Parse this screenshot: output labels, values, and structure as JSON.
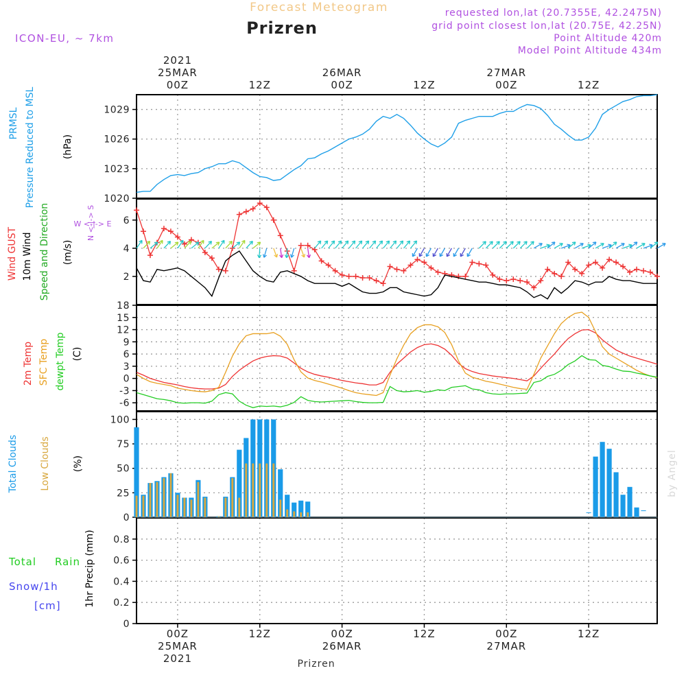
{
  "header": {
    "product": "Forecast Meteogram",
    "title": "Prizren",
    "model": "ICON-EU, ~ 7km",
    "requested": "requested lon,lat (20.7355E, 42.2475N)",
    "gridpoint": "grid point closest lon,lat (20.75E, 42.25N)",
    "point_alt": "Point Altitude 420m",
    "model_alt": "Model Point Altitude 434m",
    "footer": "Prizren",
    "credit": "by Angel"
  },
  "time_axis": {
    "top_labels": [
      {
        "time": "00Z",
        "date": "25MAR",
        "year": "2021"
      },
      {
        "time": "12Z",
        "date": "",
        "year": ""
      },
      {
        "time": "00Z",
        "date": "26MAR",
        "year": ""
      },
      {
        "time": "12Z",
        "date": "",
        "year": ""
      },
      {
        "time": "00Z",
        "date": "27MAR",
        "year": ""
      },
      {
        "time": "12Z",
        "date": "",
        "year": ""
      }
    ],
    "bottom_labels": [
      {
        "time": "00Z",
        "date": "25MAR",
        "year": "2021"
      },
      {
        "time": "12Z",
        "date": "",
        "year": ""
      },
      {
        "time": "00Z",
        "date": "26MAR",
        "year": ""
      },
      {
        "time": "12Z",
        "date": "",
        "year": ""
      },
      {
        "time": "00Z",
        "date": "27MAR",
        "year": ""
      },
      {
        "time": "12Z",
        "date": "",
        "year": ""
      }
    ]
  },
  "panel_labels": {
    "pressure": {
      "l1": "PRMSL",
      "l2": "Pressure Reduced to MSL",
      "unit": "(hPa)"
    },
    "wind": {
      "l1": "Wind GUST",
      "l2": "10m Wind",
      "l3": "Speed and Direction",
      "unit": "(m/s)",
      "compass": "W <-|-> E",
      "compass_ns": "N <-|-> S"
    },
    "temp": {
      "l1": "2m Temp",
      "l2": "SFC Temp",
      "l3": "dewpt Temp",
      "unit": "(C)"
    },
    "clouds": {
      "l1": "Total Clouds",
      "l2": "Low Clouds",
      "unit": "(%)"
    },
    "precip": {
      "l1": "Total",
      "l1b": "Rain",
      "l2": "Snow/1h",
      "l3": "[cm]",
      "unit": "1hr Precip (mm)"
    }
  },
  "colors": {
    "pressure": "#1e9fe8",
    "gust": "#ee3333",
    "wind": "#000000",
    "t2m": "#ee3333",
    "sfc": "#e8a020",
    "dew": "#22cc22",
    "total_cloud": "#1a9be8",
    "low_cloud": "#d8a840",
    "grid": "#9a9a9a",
    "header_product": "#f2c888",
    "meta": "#b050e0"
  },
  "chart_data": [
    {
      "type": "line",
      "name": "pressure",
      "ylabel": "(hPa)",
      "ylim": [
        1020,
        1030.5
      ],
      "yticks": [
        1020,
        1023,
        1026,
        1029
      ],
      "x_hours": [
        -6,
        -5,
        -4,
        -3,
        -2,
        -1,
        0,
        1,
        2,
        3,
        4,
        5,
        6,
        7,
        8,
        9,
        10,
        11,
        12,
        13,
        14,
        15,
        16,
        17,
        18,
        19,
        20,
        21,
        22,
        23,
        24,
        25,
        26,
        27,
        28,
        29,
        30,
        31,
        32,
        33,
        34,
        35,
        36,
        37,
        38,
        39,
        40,
        41,
        42,
        43,
        44,
        45,
        46,
        47,
        48,
        49,
        50,
        51,
        52,
        53,
        54,
        55,
        56,
        57,
        58,
        59,
        60,
        61,
        62,
        63,
        64,
        65,
        66,
        67,
        68,
        69,
        70
      ],
      "series": [
        {
          "values": [
            1020.6,
            1020.7,
            1020.7,
            1021.4,
            1021.9,
            1022.3,
            1022.4,
            1022.3,
            1022.5,
            1022.6,
            1023.0,
            1023.2,
            1023.5,
            1023.5,
            1023.8,
            1023.6,
            1023.1,
            1022.6,
            1022.2,
            1022.1,
            1021.8,
            1021.9,
            1022.4,
            1022.9,
            1023.3,
            1024.0,
            1024.1,
            1024.5,
            1024.8,
            1025.2,
            1025.6,
            1026.0,
            1026.2,
            1026.5,
            1027.0,
            1027.8,
            1028.3,
            1028.1,
            1028.5,
            1028.1,
            1027.4,
            1026.6,
            1026.0,
            1025.5,
            1025.2,
            1025.6,
            1026.2,
            1027.6,
            1027.9,
            1028.1,
            1028.3,
            1028.3,
            1028.3,
            1028.6,
            1028.8,
            1028.8,
            1029.2,
            1029.5,
            1029.4,
            1029.1,
            1028.4,
            1027.5,
            1027.0,
            1026.4,
            1025.9,
            1025.9,
            1026.2,
            1027.1,
            1028.5,
            1029.0,
            1029.4,
            1029.8,
            1030.0,
            1030.3,
            1030.4,
            1030.4,
            1030.5
          ]
        }
      ]
    },
    {
      "type": "line",
      "name": "wind",
      "ylabel": "(m/s)",
      "ylim": [
        0,
        7.5
      ],
      "yticks": [
        2,
        4,
        6
      ],
      "x_hours": [
        -6,
        -5,
        -4,
        -3,
        -2,
        -1,
        0,
        1,
        2,
        3,
        4,
        5,
        6,
        7,
        8,
        9,
        10,
        11,
        12,
        13,
        14,
        15,
        16,
        17,
        18,
        19,
        20,
        21,
        22,
        23,
        24,
        25,
        26,
        27,
        28,
        29,
        30,
        31,
        32,
        33,
        34,
        35,
        36,
        37,
        38,
        39,
        40,
        41,
        42,
        43,
        44,
        45,
        46,
        47,
        48,
        49,
        50,
        51,
        52,
        53,
        54,
        55,
        56,
        57,
        58,
        59,
        60,
        61,
        62,
        63,
        64,
        65,
        66,
        67,
        68,
        69,
        70
      ],
      "series": [
        {
          "name": "Wind GUST",
          "values": [
            6.7,
            5.2,
            3.5,
            4.4,
            5.4,
            5.2,
            4.8,
            4.3,
            4.6,
            4.4,
            3.7,
            3.3,
            2.5,
            2.4,
            4.0,
            6.4,
            6.6,
            6.8,
            7.2,
            6.9,
            6.0,
            4.9,
            3.8,
            2.4,
            4.2,
            4.2,
            3.9,
            3.1,
            2.8,
            2.4,
            2.1,
            2.0,
            2.0,
            1.9,
            1.9,
            1.7,
            1.5,
            2.7,
            2.5,
            2.4,
            2.8,
            3.2,
            3.0,
            2.6,
            2.3,
            2.2,
            2.1,
            2.0,
            2.0,
            3.0,
            2.9,
            2.8,
            2.1,
            1.8,
            1.7,
            1.8,
            1.7,
            1.6,
            1.2,
            1.7,
            2.5,
            2.2,
            2.0,
            3.0,
            2.5,
            2.2,
            2.8,
            3.0,
            2.6,
            3.2,
            3.0,
            2.7,
            2.3,
            2.5,
            2.4,
            2.3,
            2.0
          ]
        },
        {
          "name": "10m Wind",
          "values": [
            2.6,
            1.7,
            1.6,
            2.5,
            2.4,
            2.5,
            2.6,
            2.4,
            2.0,
            1.6,
            1.2,
            0.6,
            1.9,
            3.1,
            3.5,
            3.8,
            3.1,
            2.4,
            2.0,
            1.7,
            1.6,
            2.3,
            2.4,
            2.2,
            2.0,
            1.7,
            1.5,
            1.5,
            1.5,
            1.5,
            1.3,
            1.5,
            1.2,
            0.9,
            0.8,
            0.8,
            0.9,
            1.2,
            1.2,
            0.9,
            0.8,
            0.7,
            0.6,
            0.7,
            1.2,
            2.1,
            2.0,
            1.9,
            1.8,
            1.7,
            1.6,
            1.6,
            1.5,
            1.4,
            1.4,
            1.3,
            1.2,
            0.9,
            0.5,
            0.7,
            0.4,
            1.2,
            0.8,
            1.2,
            1.7,
            1.6,
            1.4,
            1.6,
            1.6,
            2.0,
            1.8,
            1.7,
            1.7,
            1.6,
            1.5,
            1.5,
            1.5
          ]
        }
      ]
    },
    {
      "type": "line",
      "name": "temperature",
      "ylabel": "(C)",
      "ylim": [
        -8,
        18
      ],
      "yticks": [
        -6,
        -3,
        0,
        3,
        6,
        9,
        12,
        15,
        18
      ],
      "x_hours": [
        -6,
        -5,
        -4,
        -3,
        -2,
        -1,
        0,
        1,
        2,
        3,
        4,
        5,
        6,
        7,
        8,
        9,
        10,
        11,
        12,
        13,
        14,
        15,
        16,
        17,
        18,
        19,
        20,
        21,
        22,
        23,
        24,
        25,
        26,
        27,
        28,
        29,
        30,
        31,
        32,
        33,
        34,
        35,
        36,
        37,
        38,
        39,
        40,
        41,
        42,
        43,
        44,
        45,
        46,
        47,
        48,
        49,
        50,
        51,
        52,
        53,
        54,
        55,
        56,
        57,
        58,
        59,
        60,
        61,
        62,
        63,
        64,
        65,
        66,
        67,
        68,
        69,
        70
      ],
      "series": [
        {
          "name": "2m Temp",
          "values": [
            1.5,
            0.8,
            0.0,
            -0.5,
            -1.0,
            -1.3,
            -1.6,
            -2.0,
            -2.3,
            -2.5,
            -2.6,
            -2.6,
            -2.4,
            -1.5,
            0.5,
            2.0,
            3.2,
            4.3,
            5.0,
            5.4,
            5.6,
            5.5,
            5.0,
            3.8,
            2.5,
            1.6,
            1.0,
            0.6,
            0.3,
            -0.1,
            -0.5,
            -0.8,
            -1.1,
            -1.3,
            -1.6,
            -1.6,
            -1.0,
            1.5,
            3.5,
            5.0,
            6.5,
            7.6,
            8.3,
            8.5,
            8.1,
            7.2,
            5.7,
            3.7,
            2.4,
            1.7,
            1.2,
            0.9,
            0.6,
            0.4,
            0.2,
            0.0,
            -0.3,
            -0.6,
            0.6,
            2.5,
            4.3,
            6.0,
            8.0,
            9.8,
            11.0,
            11.9,
            12.0,
            11.2,
            9.5,
            8.2,
            7.0,
            6.2,
            5.5,
            5.0,
            4.5,
            4.0,
            3.5
          ]
        },
        {
          "name": "SFC Temp",
          "values": [
            1.0,
            0.0,
            -0.8,
            -1.2,
            -1.5,
            -1.8,
            -2.4,
            -2.7,
            -3.0,
            -3.2,
            -3.3,
            -3.0,
            -2.2,
            1.5,
            5.5,
            8.5,
            10.5,
            11.0,
            11.0,
            11.0,
            11.3,
            10.4,
            8.4,
            4.6,
            1.6,
            0.1,
            -0.5,
            -0.9,
            -1.4,
            -1.9,
            -2.4,
            -3.0,
            -3.5,
            -3.8,
            -4.0,
            -4.2,
            -3.5,
            0.8,
            4.8,
            8.2,
            11.0,
            12.5,
            13.2,
            13.2,
            12.7,
            11.3,
            8.3,
            4.3,
            1.3,
            0.3,
            -0.2,
            -0.7,
            -1.0,
            -1.4,
            -1.8,
            -2.2,
            -2.5,
            -2.7,
            1.0,
            5.0,
            8.0,
            11.0,
            13.5,
            15.0,
            16.0,
            16.3,
            15.0,
            11.5,
            7.8,
            6.0,
            5.0,
            4.0,
            3.0,
            2.0,
            1.2,
            0.6,
            0.2
          ]
        },
        {
          "name": "dewpt Temp",
          "values": [
            -3.5,
            -4.0,
            -4.5,
            -5.0,
            -5.2,
            -5.5,
            -6.0,
            -6.1,
            -6.0,
            -6.0,
            -6.1,
            -5.6,
            -4.0,
            -3.5,
            -3.8,
            -5.6,
            -6.6,
            -7.2,
            -6.8,
            -6.9,
            -6.8,
            -7.0,
            -6.6,
            -5.9,
            -4.5,
            -5.4,
            -5.7,
            -5.8,
            -5.7,
            -5.6,
            -5.5,
            -5.4,
            -5.7,
            -5.9,
            -6.0,
            -6.0,
            -5.9,
            -2.0,
            -3.0,
            -3.3,
            -3.2,
            -3.0,
            -3.4,
            -3.2,
            -2.8,
            -3.0,
            -2.2,
            -2.0,
            -1.8,
            -2.6,
            -2.8,
            -3.5,
            -3.8,
            -3.9,
            -3.8,
            -3.8,
            -3.7,
            -3.6,
            -1.0,
            -0.6,
            0.5,
            1.0,
            2.0,
            3.4,
            4.3,
            5.6,
            4.6,
            4.5,
            3.2,
            2.9,
            2.3,
            1.8,
            1.7,
            1.3,
            1.0,
            0.6,
            0.3
          ]
        }
      ]
    },
    {
      "type": "bar",
      "name": "clouds",
      "ylabel": "(%)",
      "ylim": [
        0,
        108
      ],
      "yticks": [
        0,
        25,
        50,
        75,
        100
      ],
      "x_hours": [
        -6,
        -5,
        -4,
        -3,
        -2,
        -1,
        0,
        1,
        2,
        3,
        4,
        5,
        6,
        7,
        8,
        9,
        10,
        11,
        12,
        13,
        14,
        15,
        16,
        17,
        18,
        19,
        20,
        21,
        22,
        23,
        24,
        25,
        26,
        27,
        28,
        29,
        30,
        31,
        32,
        33,
        34,
        35,
        36,
        37,
        38,
        39,
        40,
        41,
        42,
        43,
        44,
        45,
        46,
        47,
        48,
        49,
        50,
        51,
        52,
        53,
        54,
        55,
        56,
        57,
        58,
        59,
        60,
        61,
        62,
        63,
        64,
        65,
        66,
        67,
        68,
        69,
        70
      ],
      "series": [
        {
          "name": "Total Clouds",
          "values": [
            92,
            23,
            35,
            37,
            41,
            45,
            25,
            20,
            20,
            38,
            21,
            0,
            1,
            21,
            41,
            69,
            81,
            100,
            100,
            100,
            100,
            49,
            23,
            15,
            17,
            16,
            0,
            0,
            0,
            0,
            0,
            0,
            0,
            0,
            0,
            0,
            0,
            0,
            0,
            0,
            0,
            0,
            0,
            0,
            0,
            0,
            0,
            0,
            0,
            0,
            0,
            0,
            0,
            0,
            0,
            0,
            0,
            0,
            0,
            0,
            0,
            0,
            0,
            0,
            0,
            0,
            5,
            62,
            77,
            70,
            46,
            23,
            31,
            10,
            7,
            0,
            0
          ]
        },
        {
          "name": "Low Clouds",
          "values": [
            22,
            22,
            35,
            36,
            40,
            45,
            23,
            20,
            18,
            36,
            20,
            0,
            1,
            20,
            40,
            20,
            55,
            55,
            55,
            55,
            55,
            18,
            8,
            6,
            5,
            5,
            0,
            0,
            0,
            0,
            0,
            0,
            0,
            0,
            0,
            0,
            0,
            0,
            0,
            0,
            0,
            0,
            0,
            0,
            0,
            0,
            0,
            0,
            0,
            0,
            0,
            0,
            0,
            0,
            0,
            0,
            0,
            0,
            0,
            0,
            0,
            0,
            0,
            0,
            0,
            0,
            0,
            0,
            0,
            0,
            0,
            0,
            0,
            0,
            0,
            0,
            0
          ]
        }
      ]
    },
    {
      "type": "bar",
      "name": "precip",
      "ylabel": "1hr Precip (mm)",
      "ylim": [
        0,
        1.0
      ],
      "yticks": [
        0,
        0.2,
        0.4,
        0.6,
        0.8
      ],
      "series": [
        {
          "name": "Total Rain",
          "values": []
        }
      ]
    }
  ]
}
